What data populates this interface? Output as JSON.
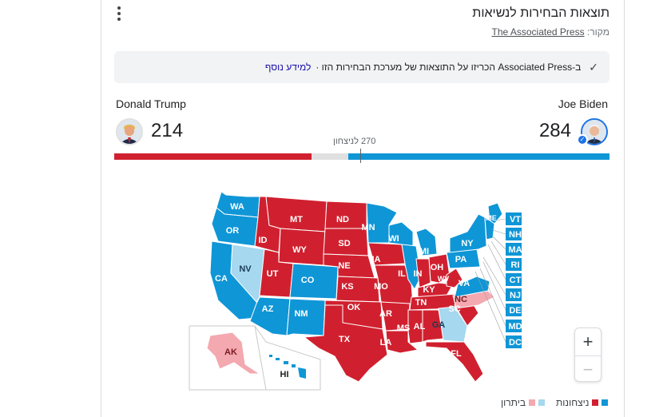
{
  "header": {
    "title": "תוצאות הבחירות לנשיאות",
    "source_label": "מקור:",
    "source_link": "The Associated Press"
  },
  "notice": {
    "text": "ב-Associated Press הכריזו על התוצאות של מערכת הבחירות הזו ·",
    "link": "למידע נוסף"
  },
  "candidates": {
    "left": {
      "name": "Donald Trump",
      "votes": "214",
      "color": "#d0202f"
    },
    "right": {
      "name": "Joe Biden",
      "votes": "284",
      "color": "#0f96d6"
    }
  },
  "threshold_label": "270 לניצחון",
  "bar": {
    "total": 538,
    "left_votes": 214,
    "right_votes": 284
  },
  "legend": {
    "wins": "ניצחונות",
    "leading": "ביתרון"
  },
  "colors": {
    "red": "#d0202f",
    "blue": "#0f96d6",
    "light_red": "#f4a8af",
    "light_blue": "#a6d8ef"
  },
  "states": {
    "WA": "WA",
    "OR": "OR",
    "CA": "CA",
    "NV": "NV",
    "ID": "ID",
    "MT": "MT",
    "WY": "WY",
    "UT": "UT",
    "AZ": "AZ",
    "CO": "CO",
    "NM": "NM",
    "ND": "ND",
    "SD": "SD",
    "NE": "NE",
    "KS": "KS",
    "OK": "OK",
    "TX": "TX",
    "MN": "MN",
    "IA": "IA",
    "MO": "MO",
    "AR": "AR",
    "LA": "LA",
    "WI": "WI",
    "IL": "IL",
    "MI": "MI",
    "IN": "IN",
    "OH": "OH",
    "KY": "KY",
    "TN": "TN",
    "MS": "MS",
    "AL": "AL",
    "GA": "GA",
    "FL": "FL",
    "SC": "SC",
    "NC": "NC",
    "VA": "VA",
    "WV": "WV",
    "PA": "PA",
    "NY": "NY",
    "ME": "ME",
    "AK": "AK",
    "HI": "HI",
    "VT": "VT",
    "NH": "NH",
    "MA": "MA",
    "RI": "RI",
    "CT": "CT",
    "NJ": "NJ",
    "DE": "DE",
    "MD": "MD",
    "DC": "DC"
  }
}
